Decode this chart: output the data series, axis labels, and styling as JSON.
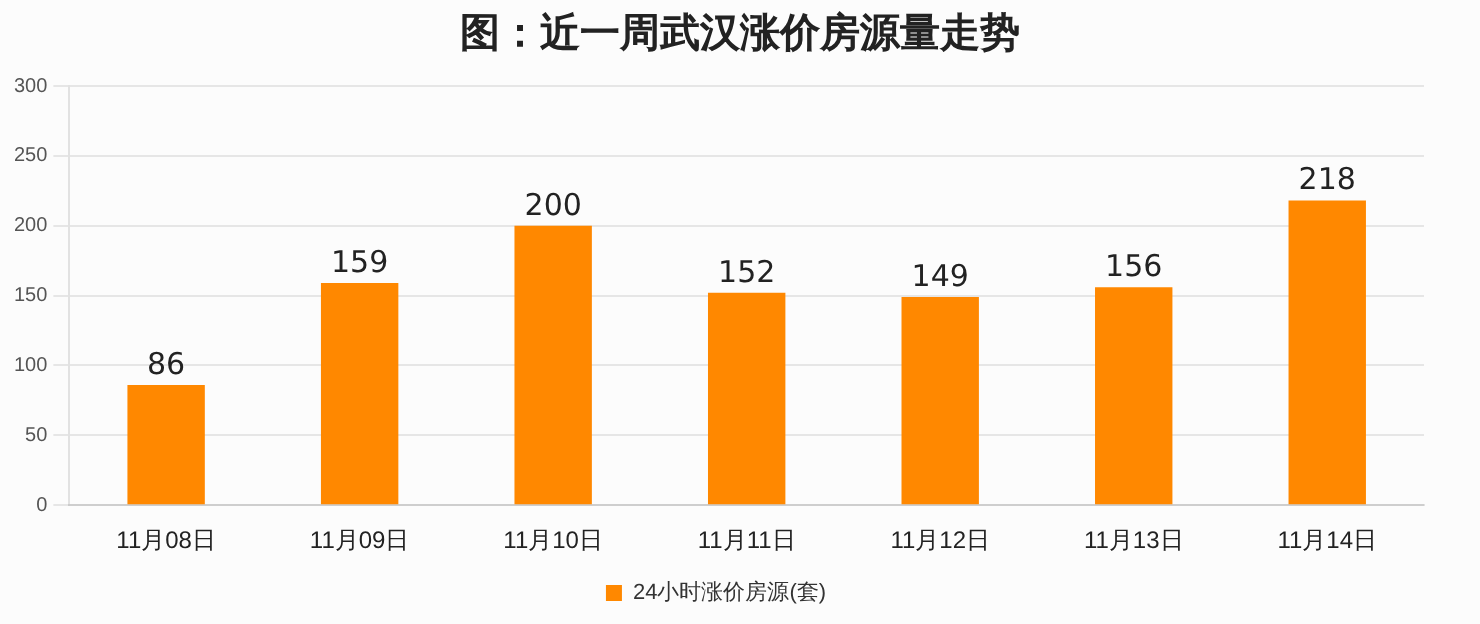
{
  "chart_data": {
    "type": "bar",
    "title": "图：近一周武汉涨价房源量走势",
    "categories": [
      "11月08日",
      "11月09日",
      "11月10日",
      "11月11日",
      "11月12日",
      "11月13日",
      "11月14日"
    ],
    "series": [
      {
        "name": "24小时涨价房源(套)",
        "color": "#ff8800",
        "values": [
          86,
          159,
          200,
          152,
          149,
          156,
          218
        ]
      }
    ],
    "ylim": [
      0,
      300
    ],
    "yticks": [
      0,
      50,
      100,
      150,
      200,
      250,
      300
    ],
    "grid": "y",
    "legend": "bottom",
    "data_labels": true
  }
}
